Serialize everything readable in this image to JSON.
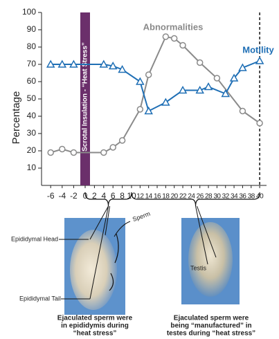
{
  "chart_data": {
    "type": "line",
    "ylabel": "Percentage",
    "ylim": [
      0,
      100
    ],
    "yticks": [
      10,
      20,
      30,
      40,
      50,
      60,
      70,
      80,
      90,
      100
    ],
    "xlim": [
      -6,
      40
    ],
    "xticks": [
      -6,
      -4,
      -2,
      0,
      2,
      4,
      6,
      8,
      10,
      12,
      14,
      16,
      18,
      20,
      22,
      24,
      26,
      28,
      30,
      32,
      34,
      36,
      38,
      40
    ],
    "series": [
      {
        "name": "Abnormalities",
        "color": "#8a8a8a",
        "marker": "circle",
        "x": [
          -6,
          -4,
          -2,
          4,
          6,
          8,
          12,
          14,
          18,
          20,
          22,
          26,
          30,
          36,
          40
        ],
        "values": [
          19,
          21,
          19,
          19,
          22,
          26,
          44,
          64,
          86,
          85,
          81,
          71,
          62,
          43,
          36
        ]
      },
      {
        "name": "Motility",
        "color": "#1f6fb5",
        "marker": "triangle",
        "x": [
          -6,
          -4,
          -2,
          4,
          6,
          8,
          12,
          14,
          18,
          22,
          26,
          28,
          32,
          34,
          36,
          40
        ],
        "values": [
          70,
          70,
          70,
          70,
          69,
          67,
          60,
          43,
          48,
          55,
          55,
          57,
          53,
          62,
          68,
          72
        ]
      }
    ],
    "annotation": "Scrotal Insulation - “Heat Stress”"
  },
  "diagram": {
    "epididymal_head": "Epididymal Head",
    "epididymal_tail": "Epididymal Tail",
    "sperm": "Sperm",
    "testis": "Testis",
    "caption_left": [
      "Ejaculated sperm were",
      "in epididymis during",
      "“heat stress”"
    ],
    "caption_right": [
      "Ejaculated sperm were",
      "being “manufactured” in",
      "testes during “heat stress”"
    ]
  }
}
